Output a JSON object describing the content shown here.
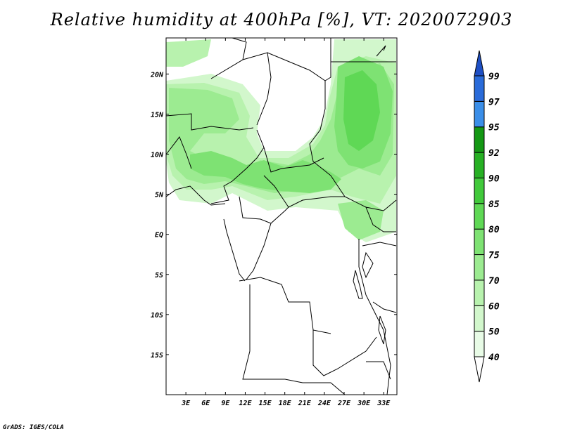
{
  "title": "Relative humidity at 400hPa [%], VT: 2020072903",
  "footer": "GrADS: IGES/COLA",
  "map": {
    "lon_labels": [
      "3E",
      "6E",
      "9E",
      "12E",
      "15E",
      "18E",
      "21E",
      "24E",
      "27E",
      "30E",
      "33E"
    ],
    "lat_labels": [
      "20N",
      "15N",
      "10N",
      "5N",
      "EQ",
      "5S",
      "10S",
      "15S"
    ],
    "lon_range": [
      0,
      35
    ],
    "lat_range": [
      -20,
      24.5
    ]
  },
  "colorbar": {
    "levels": [
      "40",
      "50",
      "60",
      "70",
      "75",
      "80",
      "85",
      "90",
      "92",
      "95",
      "97",
      "99"
    ],
    "colors": [
      "#ffffff",
      "#e8fbe6",
      "#d2f7cc",
      "#b8f2ae",
      "#9ceb91",
      "#7ee273",
      "#5fd855",
      "#41c93b",
      "#27b024",
      "#149814",
      "#3a8ee8",
      "#2a6bd9",
      "#1e4fc4"
    ]
  }
}
